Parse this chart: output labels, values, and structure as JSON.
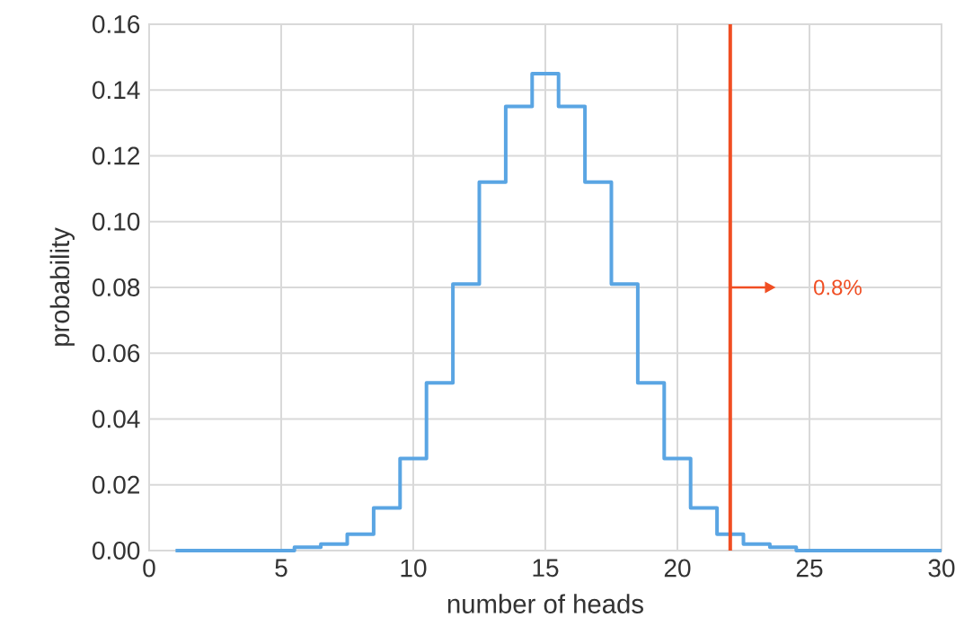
{
  "chart_data": {
    "type": "step",
    "xlabel": "number of heads",
    "ylabel": "probability",
    "x": [
      1,
      2,
      3,
      4,
      5,
      6,
      7,
      8,
      9,
      10,
      11,
      12,
      13,
      14,
      15,
      16,
      17,
      18,
      19,
      20,
      21,
      22,
      23,
      24,
      25,
      26,
      27,
      28,
      29,
      30
    ],
    "series": [
      {
        "color": "#5aa5e3",
        "values": [
          0,
          0,
          0,
          0,
          0,
          0.001,
          0.002,
          0.005,
          0.013,
          0.028,
          0.051,
          0.081,
          0.112,
          0.135,
          0.145,
          0.135,
          0.112,
          0.081,
          0.051,
          0.028,
          0.013,
          0.005,
          0.002,
          0.001,
          0,
          0,
          0,
          0,
          0,
          0
        ]
      }
    ],
    "xlim": [
      0,
      30
    ],
    "ylim": [
      0,
      0.16
    ],
    "xticks": [
      0,
      5,
      10,
      15,
      20,
      25,
      30
    ],
    "yticks": [
      {
        "value": 0,
        "label": "0.00"
      },
      {
        "value": 0.02,
        "label": "0.02"
      },
      {
        "value": 0.04,
        "label": "0.04"
      },
      {
        "value": 0.06,
        "label": "0.06"
      },
      {
        "value": 0.08,
        "label": "0.08"
      },
      {
        "value": 0.1,
        "label": "0.10"
      },
      {
        "value": 0.12,
        "label": "0.12"
      },
      {
        "value": 0.14,
        "label": "0.14"
      },
      {
        "value": 0.16,
        "label": "0.16"
      }
    ],
    "ref_lines": [
      {
        "axis": "x",
        "value": 22,
        "color": "#f04e23"
      }
    ],
    "annotations": [
      "0.8%"
    ],
    "grid": true
  }
}
